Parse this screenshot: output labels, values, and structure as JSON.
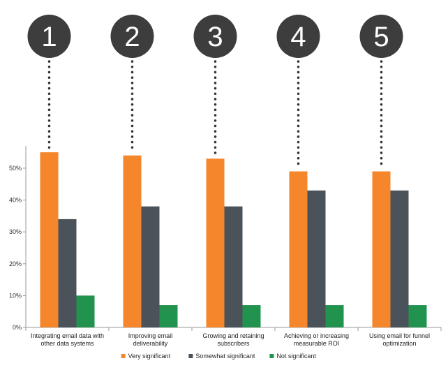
{
  "chart_data": {
    "type": "bar",
    "categories": [
      "Integrating email data with other data systems",
      "Improving email deliverability",
      "Growing and retaining subscribers",
      "Achieving or increasing measurable ROI",
      "Using email for funnel optimization"
    ],
    "category_label_lines": [
      [
        "Integrating email data with",
        "other data systems"
      ],
      [
        "Improving email",
        "deliverability"
      ],
      [
        "Growing and retaining",
        "subscribers"
      ],
      [
        "Achieving or increasing",
        "measurable ROI"
      ],
      [
        "Using email for funnel",
        "optimization"
      ]
    ],
    "badges": [
      "1",
      "2",
      "3",
      "4",
      "5"
    ],
    "series": [
      {
        "name": "Very significant",
        "color": "#F5862B",
        "values": [
          55,
          54,
          53,
          49,
          49
        ]
      },
      {
        "name": "Somewhat significant",
        "color": "#4B535A",
        "values": [
          34,
          38,
          38,
          43,
          43
        ]
      },
      {
        "name": "Not significant",
        "color": "#22934F",
        "values": [
          10,
          7,
          7,
          7,
          7
        ]
      }
    ],
    "y_ticks": [
      "0%",
      "10%",
      "20%",
      "30%",
      "40%",
      "50%"
    ],
    "y_tick_values": [
      0,
      10,
      20,
      30,
      40,
      50
    ],
    "ylim": [
      0,
      57
    ],
    "grid": false,
    "legend_position": "bottom-center",
    "badge_color": "#3D3D3D",
    "title": "",
    "xlabel": "",
    "ylabel": ""
  }
}
